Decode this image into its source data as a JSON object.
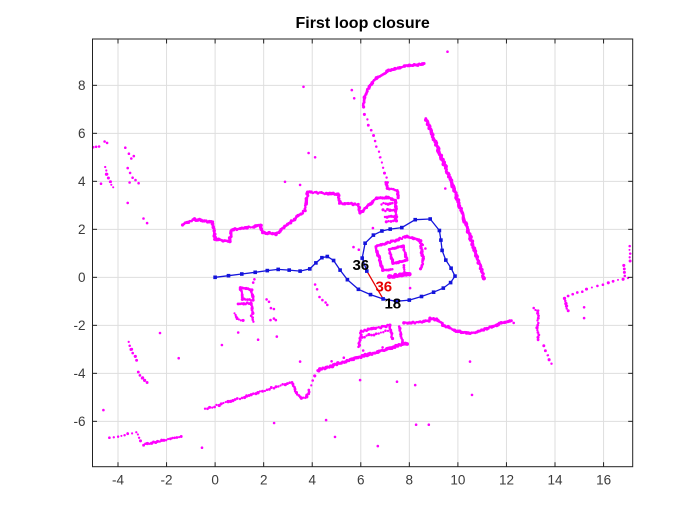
{
  "title": "First loop closure",
  "colors": {
    "map_points": "#FF00FF",
    "trajectory": "#1414DC",
    "loop_closure": "#E60000",
    "grid": "#DEDEDE",
    "frame": "#222222",
    "tick_label": "#3B3B3B",
    "background": "#FFFFFF"
  },
  "axes": {
    "xlim": [
      -5.05,
      17.2
    ],
    "ylim": [
      -7.89,
      9.93
    ],
    "xticks": [
      -4,
      -2,
      0,
      2,
      4,
      6,
      8,
      10,
      12,
      14,
      16
    ],
    "yticks": [
      -6,
      -4,
      -2,
      0,
      2,
      4,
      6,
      8
    ],
    "grid": true,
    "box": true
  },
  "chart_data": {
    "type": "scatter",
    "title": "First loop closure",
    "xlabel": "",
    "ylabel": "",
    "trajectory": [
      [
        0,
        0
      ],
      [
        0.55,
        0.07
      ],
      [
        1.1,
        0.14
      ],
      [
        1.65,
        0.21
      ],
      [
        2.15,
        0.28
      ],
      [
        2.6,
        0.33
      ],
      [
        3.05,
        0.3
      ],
      [
        3.5,
        0.26
      ],
      [
        3.9,
        0.35
      ],
      [
        4.15,
        0.6
      ],
      [
        4.4,
        0.82
      ],
      [
        4.62,
        0.87
      ],
      [
        4.88,
        0.7
      ],
      [
        5.15,
        0.3
      ],
      [
        5.45,
        -0.1
      ],
      [
        5.9,
        -0.5
      ],
      [
        6.4,
        -0.72
      ],
      [
        6.92,
        -0.9
      ],
      [
        7.45,
        -1.0
      ],
      [
        8.0,
        -0.95
      ],
      [
        8.5,
        -0.8
      ],
      [
        9.0,
        -0.62
      ],
      [
        9.4,
        -0.45
      ],
      [
        9.7,
        -0.22
      ],
      [
        9.88,
        0.05
      ],
      [
        9.72,
        0.38
      ],
      [
        9.5,
        0.72
      ],
      [
        9.35,
        1.12
      ],
      [
        9.3,
        1.55
      ],
      [
        9.24,
        1.95
      ],
      [
        8.86,
        2.43
      ],
      [
        8.24,
        2.4
      ],
      [
        7.69,
        2.07
      ],
      [
        7.21,
        2.01
      ],
      [
        6.87,
        1.93
      ],
      [
        6.52,
        1.76
      ],
      [
        6.18,
        1.42
      ],
      [
        6.06,
        0.8
      ],
      [
        6.25,
        0.26
      ]
    ],
    "loop_closure_edge": {
      "from": [
        6.25,
        0.26
      ],
      "to": [
        6.92,
        -0.9
      ]
    },
    "labels": [
      {
        "text": "36",
        "color": "#000000",
        "x": 6.0,
        "y": 0.52
      },
      {
        "text": "36",
        "color": "#E60000",
        "x": 6.95,
        "y": -0.38
      },
      {
        "text": "18",
        "color": "#000000",
        "x": 7.32,
        "y": -1.1
      }
    ],
    "map_strokes": [
      {
        "pts": [
          [
            8.61,
            8.9
          ],
          [
            7.8,
            8.8
          ],
          [
            7.15,
            8.62
          ],
          [
            6.65,
            8.3
          ],
          [
            6.35,
            7.95
          ],
          [
            6.15,
            7.5
          ],
          [
            6.1,
            7.1
          ]
        ],
        "gap": 1.7,
        "r": 1.5,
        "jit": 0.7
      },
      {
        "pts": [
          [
            6.18,
            6.8
          ],
          [
            6.5,
            5.9
          ],
          [
            6.8,
            5.0
          ],
          [
            7.0,
            4.35
          ],
          [
            7.08,
            3.95
          ]
        ],
        "gap": 5.5,
        "r": 1.25,
        "jit": 0.8
      },
      {
        "pts": [
          [
            7.02,
            3.95
          ],
          [
            7.1,
            3.72
          ],
          [
            7.5,
            3.62
          ],
          [
            7.55,
            3.32
          ]
        ],
        "gap": 2,
        "r": 1.4,
        "jit": 0.6
      },
      {
        "pts": [
          [
            8.68,
            6.62
          ],
          [
            9.8,
            3.8
          ],
          [
            11.08,
            -0.04
          ]
        ],
        "gap": 1.5,
        "r": 1.7,
        "jit": 0.8
      },
      {
        "pts": [
          [
            -1.35,
            2.2
          ],
          [
            -0.85,
            2.42
          ],
          [
            -0.1,
            2.3
          ],
          [
            0.0,
            1.58
          ],
          [
            0.6,
            1.5
          ],
          [
            0.68,
            1.98
          ],
          [
            1.88,
            2.16
          ],
          [
            1.95,
            1.86
          ],
          [
            2.5,
            1.8
          ],
          [
            3.7,
            2.78
          ],
          [
            3.82,
            3.55
          ],
          [
            5.07,
            3.47
          ],
          [
            5.13,
            3.08
          ],
          [
            5.89,
            3.05
          ],
          [
            5.97,
            2.67
          ],
          [
            6.66,
            3.29
          ]
        ],
        "gap": 1.7,
        "r": 1.5,
        "jit": 0.7
      },
      {
        "pts": [
          [
            6.66,
            3.29
          ],
          [
            7.05,
            3.34
          ],
          [
            7.42,
            3.2
          ]
        ],
        "gap": 2,
        "r": 1.5,
        "jit": 0.7
      },
      {
        "pts": [
          [
            7.42,
            3.2
          ],
          [
            7.46,
            2.35
          ]
        ],
        "gap": 2,
        "r": 1.5,
        "jit": 0.7
      },
      {
        "pts": [
          [
            6.85,
            3.05
          ],
          [
            7.3,
            3.1
          ]
        ],
        "gap": 2.2,
        "r": 1.4,
        "jit": 0.8
      },
      {
        "pts": [
          [
            6.92,
            2.78
          ],
          [
            7.38,
            2.83
          ]
        ],
        "gap": 2.2,
        "r": 1.4,
        "jit": 0.8
      },
      {
        "pts": [
          [
            7.0,
            2.5
          ],
          [
            7.42,
            2.56
          ]
        ],
        "gap": 2.2,
        "r": 1.4,
        "jit": 0.8
      },
      {
        "pts": [
          [
            7.05,
            2.32
          ],
          [
            7.44,
            2.36
          ]
        ],
        "gap": 2.2,
        "r": 1.4,
        "jit": 0.8
      },
      {
        "pts": [
          [
            6.62,
            1.28
          ],
          [
            7.9,
            1.7
          ],
          [
            8.45,
            1.52
          ]
        ],
        "gap": 1.8,
        "r": 1.5,
        "jit": 0.7
      },
      {
        "pts": [
          [
            8.45,
            1.52
          ],
          [
            8.58,
            0.78
          ],
          [
            8.48,
            0.35
          ]
        ],
        "gap": 1.8,
        "r": 1.5,
        "jit": 0.7
      },
      {
        "pts": [
          [
            6.62,
            1.28
          ],
          [
            6.9,
            0.3
          ]
        ],
        "gap": 1.8,
        "r": 1.5,
        "jit": 0.7
      },
      {
        "pts": [
          [
            6.9,
            0.3
          ],
          [
            7.3,
            0.33
          ]
        ],
        "gap": 1.8,
        "r": 1.4,
        "jit": 0.6
      },
      {
        "pts": [
          [
            7.18,
            1.15
          ],
          [
            7.75,
            1.3
          ],
          [
            7.9,
            0.72
          ],
          [
            7.32,
            0.58
          ],
          [
            7.18,
            1.15
          ]
        ],
        "gap": 1.8,
        "r": 1.4,
        "jit": 0.6
      },
      {
        "pts": [
          [
            7.18,
            0.02
          ],
          [
            8.0,
            0.16
          ]
        ],
        "gap": 1.6,
        "r": 2.0,
        "jit": 0.8
      },
      {
        "pts": [
          [
            7.78,
            0.5
          ],
          [
            7.83,
            0.15
          ]
        ],
        "gap": 2,
        "r": 1.4,
        "jit": 0.5
      },
      {
        "pts": [
          [
            1.05,
            -0.42
          ],
          [
            1.5,
            -0.52
          ],
          [
            1.56,
            -0.95
          ],
          [
            1.12,
            -0.9
          ],
          [
            1.05,
            -0.42
          ]
        ],
        "gap": 1.8,
        "r": 1.4,
        "jit": 0.6
      },
      {
        "pts": [
          [
            0.95,
            -1.12
          ],
          [
            1.48,
            -1.08
          ],
          [
            1.55,
            -1.5
          ]
        ],
        "gap": 1.8,
        "r": 1.4,
        "jit": 0.6
      },
      {
        "pts": [
          [
            0.8,
            -1.5
          ],
          [
            0.9,
            -1.72
          ],
          [
            1.15,
            -1.8
          ]
        ],
        "gap": 2,
        "r": 1.3,
        "jit": 0.6
      },
      {
        "pts": [
          [
            1.5,
            -1.6
          ],
          [
            1.58,
            -1.85
          ]
        ],
        "gap": 2,
        "r": 1.3,
        "jit": 0.5
      },
      {
        "pts": [
          [
            -0.41,
            -5.5
          ],
          [
            1.3,
            -4.95
          ],
          [
            3.16,
            -4.35
          ]
        ],
        "gap": 2.4,
        "r": 1.35,
        "jit": 0.8
      },
      {
        "pts": [
          [
            3.2,
            -4.45
          ],
          [
            3.35,
            -4.8
          ],
          [
            3.55,
            -5.05
          ],
          [
            3.78,
            -4.98
          ],
          [
            3.88,
            -4.7
          ]
        ],
        "gap": 2,
        "r": 1.4,
        "jit": 0.7
      },
      {
        "pts": [
          [
            3.95,
            -4.5
          ],
          [
            4.1,
            -4.1
          ],
          [
            4.25,
            -3.9
          ]
        ],
        "gap": 4.5,
        "r": 1.3,
        "jit": 0.8
      },
      {
        "pts": [
          [
            4.26,
            -3.86
          ],
          [
            6.0,
            -3.3
          ],
          [
            7.9,
            -2.75
          ]
        ],
        "gap": 1.6,
        "r": 1.6,
        "jit": 0.9
      },
      {
        "pts": [
          [
            5.92,
            -2.9
          ],
          [
            6.02,
            -2.25
          ],
          [
            7.18,
            -2.0
          ],
          [
            7.3,
            -2.55
          ]
        ],
        "gap": 1.8,
        "r": 1.4,
        "jit": 0.7
      },
      {
        "pts": [
          [
            6.05,
            -2.5
          ],
          [
            7.12,
            -2.22
          ]
        ],
        "gap": 2.4,
        "r": 1.3,
        "jit": 0.9
      },
      {
        "pts": [
          [
            7.6,
            -2.05
          ],
          [
            7.72,
            -2.7
          ]
        ],
        "gap": 2,
        "r": 1.4,
        "jit": 0.6
      },
      {
        "pts": [
          [
            7.78,
            -1.92
          ],
          [
            8.82,
            -1.82
          ],
          [
            8.86,
            -1.7
          ],
          [
            9.12,
            -1.76
          ],
          [
            9.45,
            -2.02
          ],
          [
            10.0,
            -2.25
          ],
          [
            10.5,
            -2.35
          ],
          [
            11.05,
            -2.18
          ],
          [
            11.65,
            -1.95
          ],
          [
            12.2,
            -1.8
          ]
        ],
        "gap": 1.8,
        "r": 1.5,
        "jit": 0.7
      },
      {
        "pts": [
          [
            13.12,
            -1.28
          ],
          [
            13.3,
            -1.4
          ],
          [
            13.28,
            -2.0
          ],
          [
            13.32,
            -2.6
          ]
        ],
        "gap": 2.5,
        "r": 1.35,
        "jit": 0.7
      },
      {
        "pts": [
          [
            13.55,
            -2.85
          ],
          [
            13.7,
            -3.25
          ],
          [
            13.85,
            -3.6
          ]
        ],
        "gap": 5,
        "r": 1.25,
        "jit": 0.6
      },
      {
        "pts": [
          [
            17.0,
            0.0
          ],
          [
            16.2,
            -0.25
          ],
          [
            15.3,
            -0.5
          ],
          [
            14.55,
            -0.8
          ]
        ],
        "gap": 5.5,
        "r": 1.25,
        "jit": 0.7
      },
      {
        "pts": [
          [
            14.38,
            -0.88
          ],
          [
            14.48,
            -1.2
          ],
          [
            14.52,
            -1.4
          ]
        ],
        "gap": 2.5,
        "r": 1.35,
        "jit": 0.7
      },
      {
        "pts": [
          [
            17.08,
            1.3
          ],
          [
            17.1,
            0.68
          ]
        ],
        "gap": 4,
        "r": 1.25,
        "jit": 0.5
      },
      {
        "pts": [
          [
            16.85,
            0.5
          ],
          [
            16.88,
            0.06
          ]
        ],
        "gap": 4,
        "r": 1.25,
        "jit": 0.5
      },
      {
        "pts": [
          [
            -4.35,
            -6.7
          ],
          [
            -4.0,
            -6.62
          ],
          [
            -3.6,
            -6.52
          ],
          [
            -3.25,
            -6.44
          ]
        ],
        "gap": 3.8,
        "r": 1.3,
        "jit": 0.7
      },
      {
        "pts": [
          [
            -3.18,
            -6.55
          ],
          [
            -3.08,
            -6.82
          ]
        ],
        "gap": 3,
        "r": 1.3,
        "jit": 0.5
      },
      {
        "pts": [
          [
            -2.95,
            -6.98
          ],
          [
            -2.2,
            -6.8
          ],
          [
            -1.4,
            -6.62
          ]
        ],
        "gap": 2.2,
        "r": 1.35,
        "jit": 0.7
      },
      {
        "pts": [
          [
            -3.58,
            -2.7
          ],
          [
            -3.45,
            -3.0
          ],
          [
            -3.3,
            -3.3
          ],
          [
            -3.22,
            -3.45
          ]
        ],
        "gap": 3.5,
        "r": 1.3,
        "jit": 0.6
      },
      {
        "pts": [
          [
            -3.17,
            -3.95
          ],
          [
            -3.0,
            -4.2
          ],
          [
            -2.82,
            -4.4
          ]
        ],
        "gap": 3.5,
        "r": 1.3,
        "jit": 0.6
      },
      {
        "pts": [
          [
            -4.52,
            4.6
          ],
          [
            -4.45,
            4.3
          ],
          [
            -4.32,
            3.98
          ],
          [
            -4.2,
            3.75
          ]
        ],
        "gap": 3.5,
        "r": 1.3,
        "jit": 0.6
      }
    ],
    "map_scatter": [
      [
        3.64,
        7.94
      ],
      [
        5.63,
        7.8
      ],
      [
        5.73,
        7.46
      ],
      [
        9.57,
        9.4
      ],
      [
        3.85,
        5.18
      ],
      [
        4.12,
        5.0
      ],
      [
        2.88,
        3.98
      ],
      [
        3.5,
        3.85
      ],
      [
        9.48,
        3.7
      ],
      [
        -3.6,
        3.1
      ],
      [
        -2.95,
        2.45
      ],
      [
        -2.8,
        2.26
      ],
      [
        -4.7,
        3.9
      ],
      [
        6.5,
        2.05
      ],
      [
        5.7,
        1.26
      ],
      [
        5.92,
        1.15
      ],
      [
        8.38,
        1.52
      ],
      [
        8.55,
        1.35
      ],
      [
        8.66,
        1.2
      ],
      [
        8.48,
        1.02
      ],
      [
        8.03,
        -0.45
      ],
      [
        1.57,
        -0.22
      ],
      [
        1.62,
        -0.08
      ],
      [
        2.12,
        -0.92
      ],
      [
        2.22,
        -1.02
      ],
      [
        2.3,
        -1.28
      ],
      [
        2.42,
        -1.32
      ],
      [
        2.42,
        -1.72
      ],
      [
        2.28,
        -1.78
      ],
      [
        2.5,
        -1.78
      ],
      [
        4.12,
        -0.3
      ],
      [
        4.2,
        -0.5
      ],
      [
        4.3,
        -0.82
      ],
      [
        4.42,
        -0.95
      ],
      [
        4.55,
        -1.05
      ],
      [
        4.62,
        -1.15
      ],
      [
        -2.27,
        -2.32
      ],
      [
        -1.5,
        -3.37
      ],
      [
        0.95,
        -2.3
      ],
      [
        0.28,
        -2.82
      ],
      [
        1.77,
        -2.6
      ],
      [
        2.54,
        -2.47
      ],
      [
        3.5,
        -3.51
      ],
      [
        -4.6,
        -5.53
      ],
      [
        -0.54,
        -7.1
      ],
      [
        2.43,
        -6.07
      ],
      [
        4.57,
        -5.95
      ],
      [
        4.94,
        -6.65
      ],
      [
        6.7,
        -7.03
      ],
      [
        8.28,
        -6.14
      ],
      [
        8.8,
        -6.14
      ],
      [
        5.97,
        -4.28
      ],
      [
        7.49,
        -4.35
      ],
      [
        8.24,
        -4.49
      ],
      [
        10.5,
        -3.51
      ],
      [
        10.58,
        -4.9
      ],
      [
        15.2,
        -1.25
      ],
      [
        15.2,
        -1.7
      ],
      [
        12.3,
        -1.9
      ],
      [
        4.8,
        -3.5
      ],
      [
        5.3,
        -3.35
      ],
      [
        6.1,
        -3.05
      ],
      [
        6.9,
        -2.92
      ],
      [
        7.35,
        -2.88
      ],
      [
        -3.35,
        5.05
      ],
      [
        -3.7,
        5.4
      ],
      [
        -3.55,
        5.15
      ],
      [
        -3.45,
        4.95
      ],
      [
        -3.6,
        4.55
      ],
      [
        -3.5,
        4.35
      ],
      [
        -3.4,
        4.15
      ],
      [
        -3.28,
        4.05
      ],
      [
        -3.52,
        3.95
      ],
      [
        -3.15,
        3.92
      ],
      [
        -4.55,
        5.66
      ],
      [
        -4.45,
        5.6
      ],
      [
        -5.02,
        5.42
      ],
      [
        -4.9,
        5.44
      ],
      [
        -4.78,
        5.45
      ]
    ]
  }
}
